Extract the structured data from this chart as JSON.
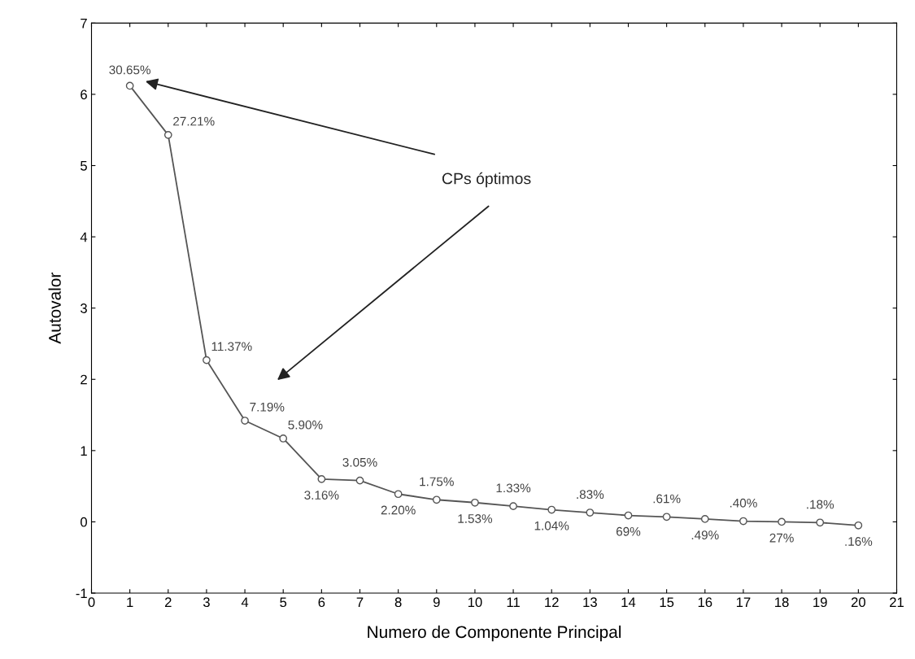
{
  "chart_data": {
    "type": "line",
    "xlabel": "Numero de Componente Principal",
    "ylabel": "Autovalor",
    "x": [
      1,
      2,
      3,
      4,
      5,
      6,
      7,
      8,
      9,
      10,
      11,
      12,
      13,
      14,
      15,
      16,
      17,
      18,
      19,
      20
    ],
    "series": [
      {
        "color": "#555555",
        "values": [
          6.12,
          5.43,
          2.27,
          1.42,
          1.17,
          0.6,
          0.58,
          0.39,
          0.31,
          0.27,
          0.22,
          0.17,
          0.13,
          0.09,
          0.07,
          0.04,
          0.01,
          0.0,
          -0.01,
          -0.05
        ]
      }
    ],
    "annotations": [
      "CPs óptimos",
      {
        "text": "30.65%",
        "x": 1,
        "y": 6.12
      },
      {
        "text": "27.21%",
        "x": 2,
        "y": 5.43
      },
      {
        "text": "11.37%",
        "x": 3,
        "y": 2.27
      },
      {
        "text": "7.19%",
        "x": 4,
        "y": 1.42
      },
      {
        "text": "5.90%",
        "x": 5,
        "y": 1.17
      },
      {
        "text": "3.16%",
        "x": 6,
        "y": 0.6
      },
      {
        "text": "3.05%",
        "x": 7,
        "y": 0.58
      },
      {
        "text": "2.20%",
        "x": 8,
        "y": 0.39
      },
      {
        "text": "1.75%",
        "x": 9,
        "y": 0.31
      },
      {
        "text": "1.53%",
        "x": 10,
        "y": 0.27
      },
      {
        "text": "1.33%",
        "x": 11,
        "y": 0.22
      },
      {
        "text": "1.04%",
        "x": 12,
        "y": 0.17
      },
      {
        "text": ".83%",
        "x": 13,
        "y": 0.13
      },
      {
        "text": "69%",
        "x": 14,
        "y": 0.09
      },
      {
        "text": ".61%",
        "x": 15,
        "y": 0.07
      },
      {
        "text": ".49%",
        "x": 16,
        "y": 0.04
      },
      {
        "text": ".40%",
        "x": 17,
        "y": 0.01
      },
      {
        "text": "27%",
        "x": 18,
        "y": 0.0
      },
      {
        "text": ".18%",
        "x": 19,
        "y": -0.01
      },
      {
        "text": ".16%",
        "x": 20,
        "y": -0.05
      }
    ],
    "xlim": [
      0,
      21
    ],
    "xticks": [
      0,
      1,
      2,
      3,
      4,
      5,
      6,
      7,
      8,
      9,
      10,
      11,
      12,
      13,
      14,
      15,
      16,
      17,
      18,
      19,
      20,
      21
    ],
    "ylim": [
      -1,
      7
    ],
    "yticks": [
      -1,
      0,
      1,
      2,
      3,
      4,
      5,
      6,
      7
    ],
    "marker": "circle",
    "line_style": "solid",
    "grid": false
  }
}
